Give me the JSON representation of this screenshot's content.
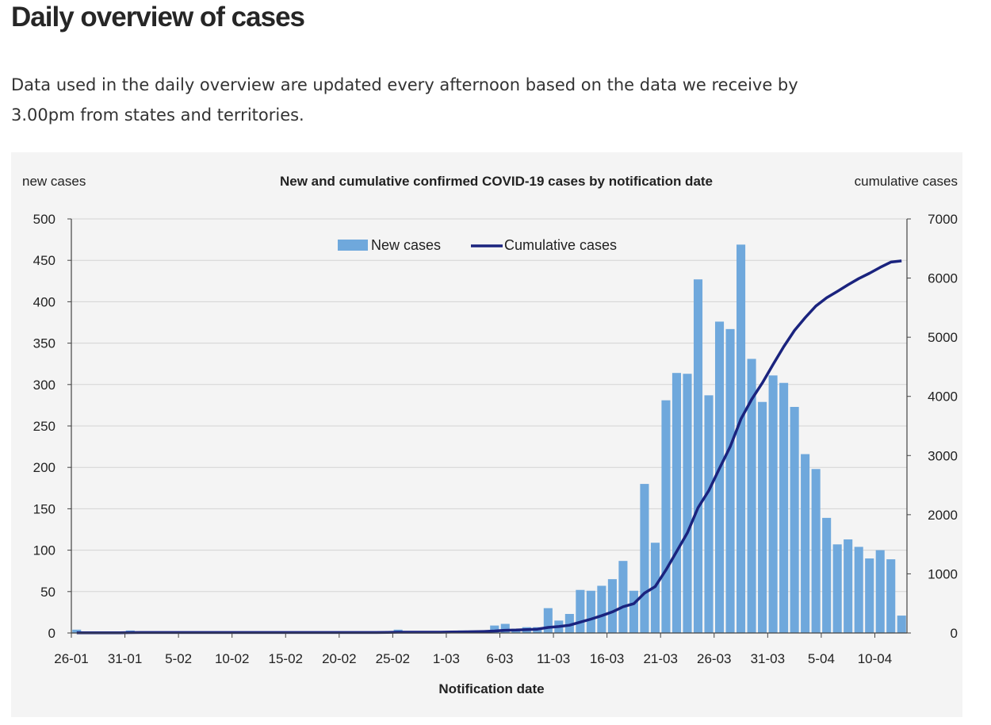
{
  "page": {
    "title": "Daily overview of cases",
    "intro": "Data used in the daily overview are updated every afternoon based on the data we receive by 3.00pm from states and territories."
  },
  "chart_data": {
    "type": "bar",
    "title": "New and cumulative confirmed COVID-19 cases by notification date",
    "ylabel": "new cases",
    "y2label": "cumulative cases",
    "xlabel": "Notification date",
    "ylim": [
      0,
      500
    ],
    "y2lim": [
      0,
      7000
    ],
    "yticks": [
      0,
      50,
      100,
      150,
      200,
      250,
      300,
      350,
      400,
      450,
      500
    ],
    "y2ticks": [
      0,
      1000,
      2000,
      3000,
      4000,
      5000,
      6000,
      7000
    ],
    "x": [
      "26-01",
      "27-01",
      "28-01",
      "29-01",
      "30-01",
      "31-01",
      "01-02",
      "02-02",
      "03-02",
      "04-02",
      "05-02",
      "06-02",
      "07-02",
      "08-02",
      "09-02",
      "10-02",
      "11-02",
      "12-02",
      "13-02",
      "14-02",
      "15-02",
      "16-02",
      "17-02",
      "18-02",
      "19-02",
      "20-02",
      "21-02",
      "22-02",
      "23-02",
      "24-02",
      "25-02",
      "26-02",
      "27-02",
      "28-02",
      "29-02",
      "01-03",
      "02-03",
      "03-03",
      "04-03",
      "05-03",
      "06-03",
      "07-03",
      "08-03",
      "09-03",
      "10-03",
      "11-03",
      "12-03",
      "13-03",
      "14-03",
      "15-03",
      "16-03",
      "17-03",
      "18-03",
      "19-03",
      "20-03",
      "21-03",
      "22-03",
      "23-03",
      "24-03",
      "25-03",
      "26-03",
      "27-03",
      "28-03",
      "29-03",
      "30-03",
      "31-03",
      "01-04",
      "02-04",
      "03-04",
      "04-04",
      "05-04",
      "06-04",
      "07-04",
      "08-04",
      "09-04",
      "10-04",
      "11-04",
      "12-04"
    ],
    "xtick_labels": [
      "26-01",
      "31-01",
      "5-02",
      "10-02",
      "15-02",
      "20-02",
      "25-02",
      "1-03",
      "6-03",
      "11-03",
      "16-03",
      "21-03",
      "26-03",
      "31-03",
      "5-04",
      "10-04"
    ],
    "series": [
      {
        "name": "New cases",
        "type": "bar",
        "color": "#6fa8dc",
        "values": [
          4,
          0,
          0,
          0,
          0,
          3,
          1,
          0,
          0,
          0,
          0,
          0,
          0,
          0,
          0,
          0,
          0,
          0,
          0,
          0,
          0,
          0,
          0,
          0,
          0,
          0,
          0,
          0,
          0,
          1,
          4,
          0,
          0,
          0,
          1,
          2,
          3,
          3,
          3,
          9,
          11,
          5,
          7,
          7,
          30,
          15,
          23,
          52,
          51,
          57,
          65,
          87,
          51,
          180,
          109,
          281,
          314,
          313,
          427,
          287,
          376,
          367,
          469,
          331,
          279,
          311,
          302,
          273,
          216,
          198,
          139,
          107,
          113,
          104,
          90,
          100,
          89,
          21
        ]
      },
      {
        "name": "Cumulative cases",
        "type": "line",
        "color": "#1a237e",
        "values": [
          4,
          4,
          4,
          4,
          4,
          7,
          8,
          8,
          8,
          8,
          8,
          8,
          8,
          8,
          8,
          8,
          8,
          8,
          8,
          8,
          8,
          8,
          8,
          8,
          8,
          8,
          8,
          8,
          8,
          9,
          13,
          13,
          13,
          13,
          14,
          16,
          19,
          22,
          25,
          34,
          45,
          50,
          57,
          64,
          94,
          109,
          132,
          184,
          235,
          292,
          357,
          444,
          495,
          675,
          784,
          1065,
          1379,
          1692,
          2119,
          2406,
          2782,
          3149,
          3618,
          3949,
          4228,
          4539,
          4841,
          5114,
          5330,
          5528,
          5667,
          5774,
          5887,
          5991,
          6081,
          6181,
          6270,
          6291
        ]
      }
    ]
  }
}
